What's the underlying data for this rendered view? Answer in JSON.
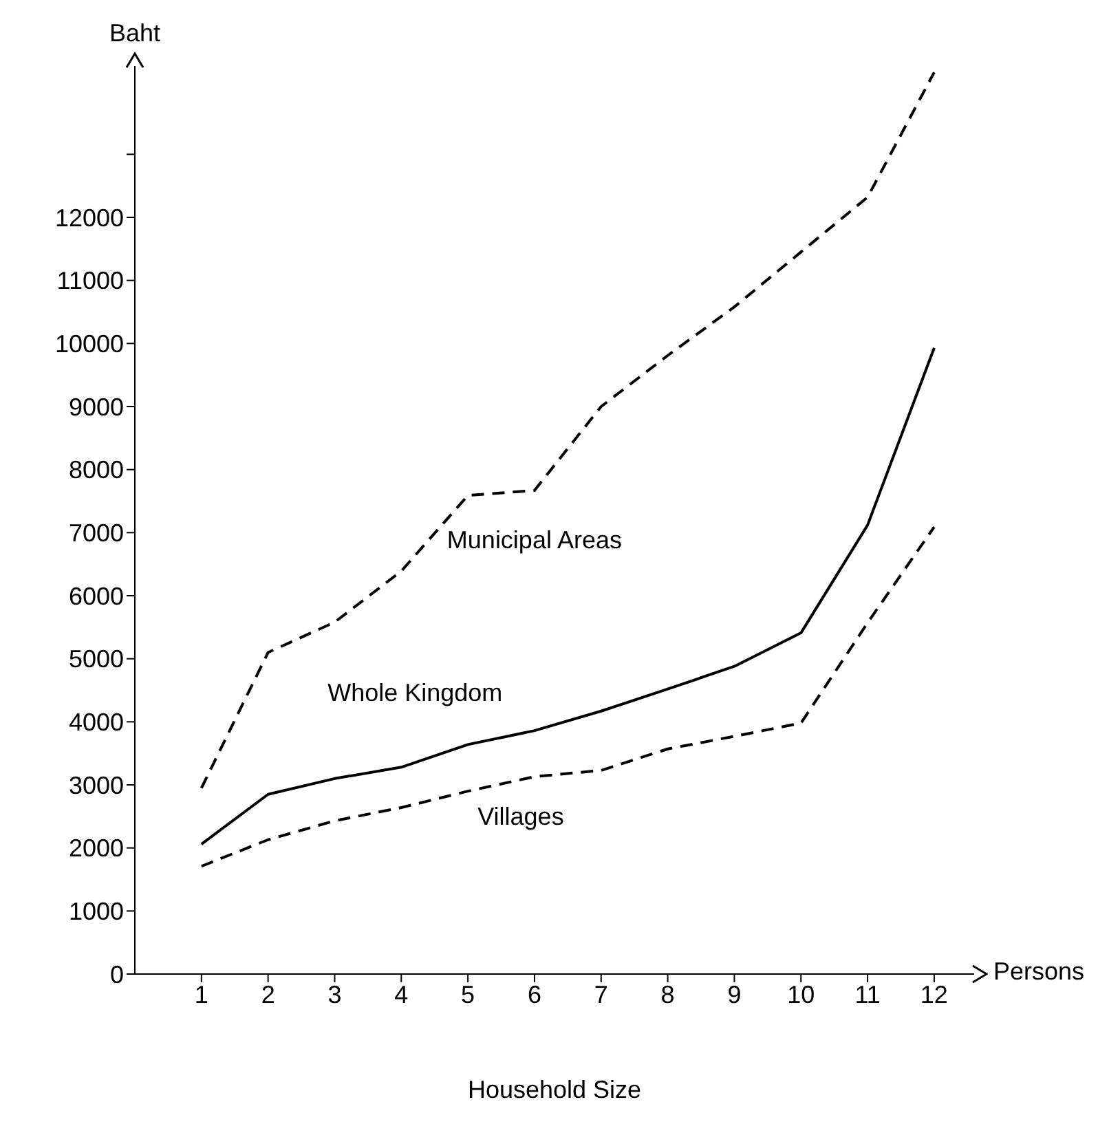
{
  "chart_data": {
    "type": "line",
    "xlabel": "Household Size",
    "ylabel": "Baht",
    "annotations": [
      "Persons"
    ],
    "x": [
      1,
      2,
      3,
      4,
      5,
      6,
      7,
      8,
      9,
      10,
      11,
      12
    ],
    "xlim": [
      0,
      12.6
    ],
    "xticks": [
      1,
      2,
      3,
      4,
      5,
      6,
      7,
      8,
      9,
      10,
      11,
      12
    ],
    "ylim": [
      0,
      14400
    ],
    "yticks": [
      0,
      1000,
      2000,
      3000,
      4000,
      5000,
      6000,
      7000,
      8000,
      9000,
      10000,
      11000,
      12000,
      {
        "value": 13000,
        "label": null
      }
    ],
    "grid": false,
    "marker": "none",
    "series": [
      {
        "name": "Municipal Areas",
        "color": "#000000",
        "line_style": "dashed",
        "values": [
          2950,
          5100,
          5580,
          6390,
          7590,
          7670,
          9000,
          9810,
          10580,
          11450,
          12320,
          14300
        ]
      },
      {
        "name": "Whole Kingdom",
        "color": "#000000",
        "line_style": "solid",
        "values": [
          2060,
          2850,
          3100,
          3280,
          3640,
          3860,
          4170,
          4520,
          4880,
          5410,
          7120,
          9930
        ]
      },
      {
        "name": "Villages",
        "color": "#000000",
        "line_style": "dashed",
        "values": [
          1710,
          2130,
          2430,
          2640,
          2900,
          3130,
          3230,
          3570,
          3770,
          3980,
          5570,
          7090
        ]
      }
    ]
  }
}
